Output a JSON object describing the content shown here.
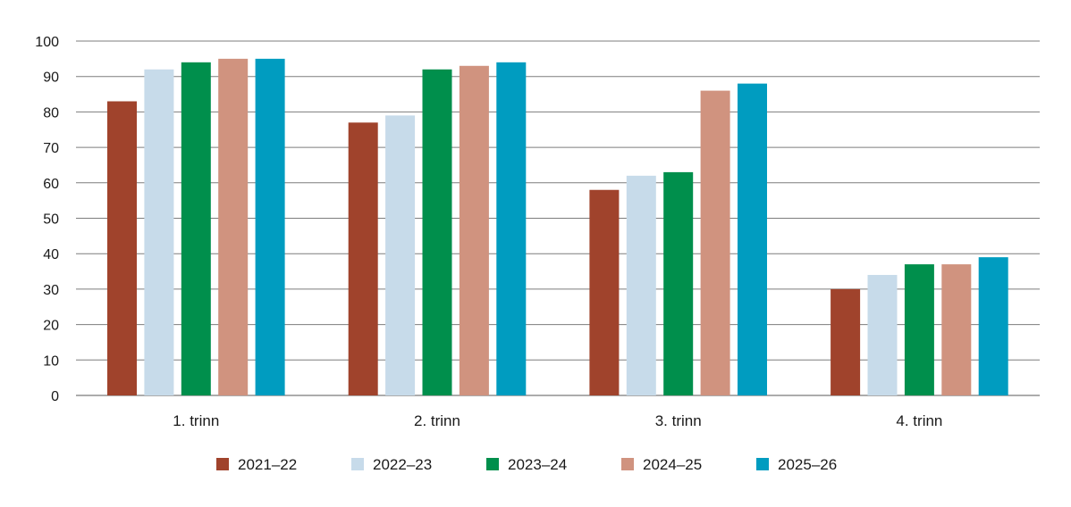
{
  "chart_data": {
    "type": "bar",
    "categories": [
      "1. trinn",
      "2. trinn",
      "3. trinn",
      "4. trinn"
    ],
    "series": [
      {
        "name": "2021–22",
        "color": "#a0432c",
        "values": [
          83,
          77,
          58,
          30
        ]
      },
      {
        "name": "2022–23",
        "color": "#c7dbea",
        "values": [
          92,
          79,
          62,
          34
        ]
      },
      {
        "name": "2023–24",
        "color": "#008f4c",
        "values": [
          94,
          92,
          63,
          37
        ]
      },
      {
        "name": "2024–25",
        "color": "#d0937f",
        "values": [
          95,
          93,
          86,
          37
        ]
      },
      {
        "name": "2025–26",
        "color": "#009cc0",
        "values": [
          95,
          94,
          88,
          39
        ]
      }
    ],
    "yticks": [
      0,
      10,
      20,
      30,
      40,
      50,
      60,
      70,
      80,
      90,
      100
    ],
    "ylim": [
      0,
      100
    ],
    "grid": true,
    "legend_position": "bottom"
  }
}
